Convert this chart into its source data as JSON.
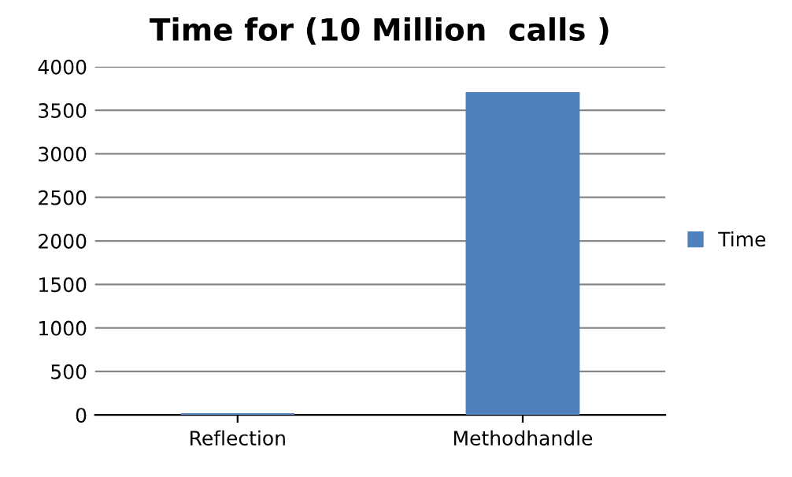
{
  "chart_data": {
    "type": "bar",
    "title": "Time for (10 Million  calls )",
    "categories": [
      "Reflection",
      "Methodhandle"
    ],
    "series": [
      {
        "name": "Time",
        "color": "#4f81bd",
        "values": [
          20,
          3710
        ]
      }
    ],
    "ylim": [
      0,
      4000
    ],
    "yticks": [
      0,
      500,
      1000,
      1500,
      2000,
      2500,
      3000,
      3500,
      4000
    ],
    "grid": "y",
    "legend": "right"
  }
}
